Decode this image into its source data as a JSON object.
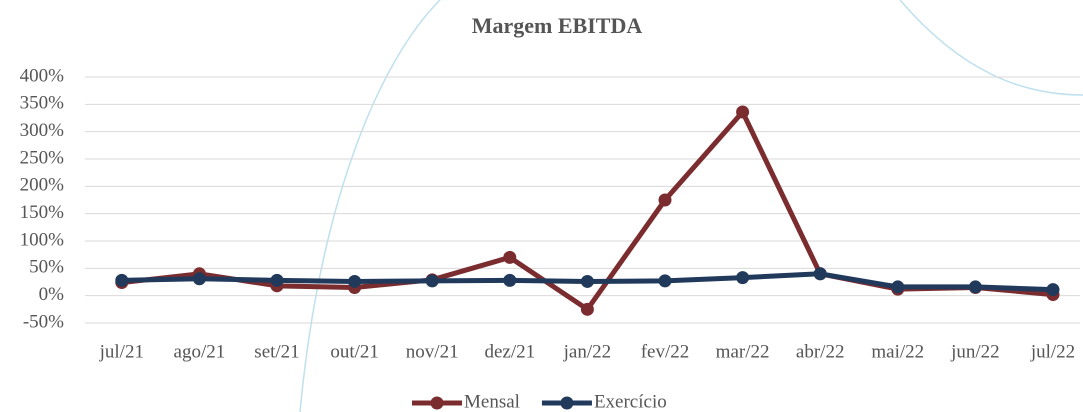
{
  "chart_data": {
    "type": "line",
    "title": "Margem EBITDA",
    "categories": [
      "jul/21",
      "ago/21",
      "set/21",
      "out/21",
      "nov/21",
      "dez/21",
      "jan/22",
      "fev/22",
      "mar/22",
      "abr/22",
      "mai/22",
      "jun/22",
      "jul/22"
    ],
    "series": [
      {
        "name": "Mensal",
        "color": "#7b2c2f",
        "values": [
          24,
          40,
          18,
          15,
          29,
          70,
          -25,
          175,
          336,
          40,
          12,
          15,
          2
        ]
      },
      {
        "name": "Exercício",
        "color": "#213a5c",
        "values": [
          28,
          31,
          28,
          26,
          27,
          28,
          26,
          27,
          33,
          40,
          16,
          16,
          11
        ]
      }
    ],
    "ylim": [
      -50,
      400
    ],
    "yticks": [
      {
        "value": -50,
        "label": "-50%"
      },
      {
        "value": 0,
        "label": "0%"
      },
      {
        "value": 50,
        "label": "50%"
      },
      {
        "value": 100,
        "label": "100%"
      },
      {
        "value": 150,
        "label": "150%"
      },
      {
        "value": 200,
        "label": "200%"
      },
      {
        "value": 250,
        "label": "250%"
      },
      {
        "value": 300,
        "label": "300%"
      },
      {
        "value": 350,
        "label": "350%"
      },
      {
        "value": 400,
        "label": "400%"
      }
    ],
    "grid": true,
    "legend": "bottom"
  }
}
